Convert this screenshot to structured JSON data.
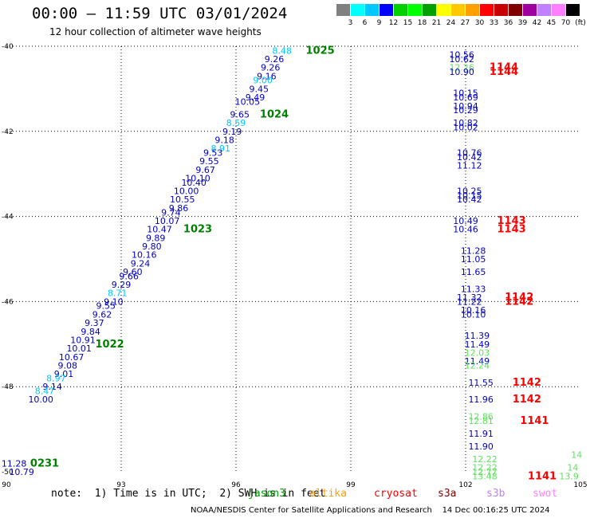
{
  "title": "00:00 — 11:59 UTC 03/01/2024",
  "subtitle": "12 hour collection of altimeter wave heights",
  "colorbar": {
    "colors": [
      "#808080",
      "#00ffff",
      "#00c8ff",
      "#0000ff",
      "#00d000",
      "#00ff00",
      "#00a000",
      "#ffff00",
      "#ffc800",
      "#ffa000",
      "#ff0000",
      "#c80000",
      "#800000",
      "#a000a0",
      "#c080ff",
      "#ff80ff",
      "#000000"
    ],
    "labels": [
      "3",
      "6",
      "9",
      "12",
      "15",
      "18",
      "21",
      "24",
      "27",
      "30",
      "33",
      "36",
      "39",
      "42",
      "45",
      "70"
    ],
    "unit": "(ft)"
  },
  "axes": {
    "y_labels": [
      "-40",
      "-42",
      "-44",
      "-46",
      "-48",
      "-50"
    ],
    "x_labels": [
      "90",
      "93",
      "96",
      "99",
      "102",
      "105"
    ]
  },
  "note": "note:  1) Time is in UTC;  2) SWH is in feet",
  "legend": [
    {
      "label": "jason3",
      "color": "#00a000"
    },
    {
      "label": "altika",
      "color": "#ffa000"
    },
    {
      "label": "cryosat",
      "color": "#ff0000"
    },
    {
      "label": "s3a",
      "color": "#800000"
    },
    {
      "label": "s3b",
      "color": "#c080ff"
    },
    {
      "label": "swot",
      "color": "#ff80ff"
    }
  ],
  "footer": "NOAA/NESDIS Center for Satellite Applications and Research    14 Dec 00:16:25 UTC 2024",
  "chart_data": {
    "type": "scatter",
    "x_range": [
      90,
      105
    ],
    "y_range": [
      -50,
      -40
    ],
    "track1_values": [
      {
        "lat": -40.1,
        "lon": 97.2,
        "v": "8.48",
        "c": "#00c8ff"
      },
      {
        "lat": -40.3,
        "lon": 97.0,
        "v": "9.26",
        "c": "#0000c8"
      },
      {
        "lat": -40.5,
        "lon": 96.9,
        "v": "9.26",
        "c": "#0000c8"
      },
      {
        "lat": -40.7,
        "lon": 96.8,
        "v": "9.16",
        "c": "#0000c8"
      },
      {
        "lat": -40.8,
        "lon": 96.7,
        "v": "9.00",
        "c": "#00c8ff"
      },
      {
        "lat": -41.0,
        "lon": 96.6,
        "v": "9.45",
        "c": "#0000c8"
      },
      {
        "lat": -41.2,
        "lon": 96.5,
        "v": "9.49",
        "c": "#0000c8"
      },
      {
        "lat": -41.3,
        "lon": 96.3,
        "v": "10.05",
        "c": "#0000c8"
      },
      {
        "lat": -41.6,
        "lon": 96.1,
        "v": "9.65",
        "c": "#0000c8"
      },
      {
        "lat": -41.8,
        "lon": 96.0,
        "v": "8.59",
        "c": "#00c8ff"
      },
      {
        "lat": -42.0,
        "lon": 95.9,
        "v": "9.19",
        "c": "#0000c8"
      },
      {
        "lat": -42.2,
        "lon": 95.7,
        "v": "9.18",
        "c": "#0000c8"
      },
      {
        "lat": -42.4,
        "lon": 95.6,
        "v": "8.91",
        "c": "#00c8ff"
      },
      {
        "lat": -42.5,
        "lon": 95.4,
        "v": "9.53",
        "c": "#0000c8"
      },
      {
        "lat": -42.7,
        "lon": 95.3,
        "v": "9.55",
        "c": "#0000c8"
      },
      {
        "lat": -42.9,
        "lon": 95.2,
        "v": "9.67",
        "c": "#0000c8"
      },
      {
        "lat": -43.1,
        "lon": 95.0,
        "v": "10.10",
        "c": "#0000c8"
      },
      {
        "lat": -43.2,
        "lon": 94.9,
        "v": "10.40",
        "c": "#0000c8"
      },
      {
        "lat": -43.4,
        "lon": 94.7,
        "v": "10.00",
        "c": "#0000c8"
      },
      {
        "lat": -43.6,
        "lon": 94.6,
        "v": "10.55",
        "c": "#0000c8"
      },
      {
        "lat": -43.8,
        "lon": 94.5,
        "v": "9.86",
        "c": "#0000c8"
      },
      {
        "lat": -43.9,
        "lon": 94.3,
        "v": "9.74",
        "c": "#0000c8"
      },
      {
        "lat": -44.1,
        "lon": 94.2,
        "v": "10.07",
        "c": "#0000c8"
      },
      {
        "lat": -44.3,
        "lon": 94.0,
        "v": "10.47",
        "c": "#0000c8"
      },
      {
        "lat": -44.5,
        "lon": 93.9,
        "v": "9.89",
        "c": "#0000c8"
      },
      {
        "lat": -44.7,
        "lon": 93.8,
        "v": "9.80",
        "c": "#0000c8"
      },
      {
        "lat": -44.9,
        "lon": 93.6,
        "v": "10.16",
        "c": "#0000c8"
      },
      {
        "lat": -45.1,
        "lon": 93.5,
        "v": "9.24",
        "c": "#0000c8"
      },
      {
        "lat": -45.3,
        "lon": 93.3,
        "v": "9.60",
        "c": "#0000c8"
      },
      {
        "lat": -45.4,
        "lon": 93.2,
        "v": "9.66",
        "c": "#0000c8"
      },
      {
        "lat": -45.6,
        "lon": 93.0,
        "v": "9.29",
        "c": "#0000c8"
      },
      {
        "lat": -45.8,
        "lon": 92.9,
        "v": "8.71",
        "c": "#00c8ff"
      },
      {
        "lat": -46.0,
        "lon": 92.8,
        "v": "9.10",
        "c": "#0000c8"
      },
      {
        "lat": -46.1,
        "lon": 92.6,
        "v": "9.55",
        "c": "#0000c8"
      },
      {
        "lat": -46.3,
        "lon": 92.5,
        "v": "9.62",
        "c": "#0000c8"
      },
      {
        "lat": -46.5,
        "lon": 92.3,
        "v": "9.37",
        "c": "#0000c8"
      },
      {
        "lat": -46.7,
        "lon": 92.2,
        "v": "9.84",
        "c": "#0000c8"
      },
      {
        "lat": -46.9,
        "lon": 92.0,
        "v": "10.91",
        "c": "#0000c8"
      },
      {
        "lat": -47.1,
        "lon": 91.9,
        "v": "10.01",
        "c": "#0000c8"
      },
      {
        "lat": -47.3,
        "lon": 91.7,
        "v": "10.67",
        "c": "#0000c8"
      },
      {
        "lat": -47.5,
        "lon": 91.6,
        "v": "9.08",
        "c": "#0000c8"
      },
      {
        "lat": -47.7,
        "lon": 91.5,
        "v": "9.01",
        "c": "#0000c8"
      },
      {
        "lat": -47.8,
        "lon": 91.3,
        "v": "8.97",
        "c": "#00c8ff"
      },
      {
        "lat": -48.0,
        "lon": 91.2,
        "v": "9.14",
        "c": "#0000c8"
      },
      {
        "lat": -48.1,
        "lon": 91.0,
        "v": "8.47",
        "c": "#00c8ff"
      },
      {
        "lat": -48.3,
        "lon": 90.9,
        "v": "10.00",
        "c": "#0000c8"
      },
      {
        "lat": -49.8,
        "lon": 90.2,
        "v": "11.28",
        "c": "#0000c8"
      },
      {
        "lat": -50.0,
        "lon": 90.4,
        "v": "10.79",
        "c": "#0000c8"
      }
    ],
    "track2_values": [
      {
        "lat": -40.2,
        "lon": 101.9,
        "v": "10.56",
        "c": "#0000c8"
      },
      {
        "lat": -40.3,
        "lon": 101.9,
        "v": "10.62",
        "c": "#0000c8"
      },
      {
        "lat": -40.5,
        "lon": 101.9,
        "v": "12.26",
        "c": "#60e060"
      },
      {
        "lat": -40.6,
        "lon": 101.9,
        "v": "10.90",
        "c": "#0000c8"
      },
      {
        "lat": -41.1,
        "lon": 102.0,
        "v": "10.15",
        "c": "#0000c8"
      },
      {
        "lat": -41.2,
        "lon": 102.0,
        "v": "10.69",
        "c": "#0000c8"
      },
      {
        "lat": -41.4,
        "lon": 102.0,
        "v": "10.94",
        "c": "#0000c8"
      },
      {
        "lat": -41.5,
        "lon": 102.0,
        "v": "10.29",
        "c": "#0000c8"
      },
      {
        "lat": -41.8,
        "lon": 102.0,
        "v": "10.82",
        "c": "#0000c8"
      },
      {
        "lat": -41.9,
        "lon": 102.0,
        "v": "10.02",
        "c": "#0000c8"
      },
      {
        "lat": -42.5,
        "lon": 102.1,
        "v": "10.76",
        "c": "#0000c8"
      },
      {
        "lat": -42.6,
        "lon": 102.1,
        "v": "10.42",
        "c": "#0000c8"
      },
      {
        "lat": -42.8,
        "lon": 102.1,
        "v": "11.12",
        "c": "#0000c8"
      },
      {
        "lat": -43.4,
        "lon": 102.1,
        "v": "10.25",
        "c": "#0000c8"
      },
      {
        "lat": -43.5,
        "lon": 102.1,
        "v": "10.15",
        "c": "#0000c8"
      },
      {
        "lat": -43.6,
        "lon": 102.1,
        "v": "10.42",
        "c": "#0000c8"
      },
      {
        "lat": -44.1,
        "lon": 102.0,
        "v": "10.49",
        "c": "#0000c8"
      },
      {
        "lat": -44.3,
        "lon": 102.0,
        "v": "10.46",
        "c": "#0000c8"
      },
      {
        "lat": -44.8,
        "lon": 102.2,
        "v": "11.28",
        "c": "#0000c8"
      },
      {
        "lat": -45.0,
        "lon": 102.2,
        "v": "11.05",
        "c": "#0000c8"
      },
      {
        "lat": -45.3,
        "lon": 102.2,
        "v": "11.65",
        "c": "#0000c8"
      },
      {
        "lat": -45.7,
        "lon": 102.2,
        "v": "11.33",
        "c": "#0000c8"
      },
      {
        "lat": -45.9,
        "lon": 102.1,
        "v": "11.32",
        "c": "#0000c8"
      },
      {
        "lat": -46.0,
        "lon": 102.1,
        "v": "11.22",
        "c": "#0000c8"
      },
      {
        "lat": -46.2,
        "lon": 102.2,
        "v": "10.16",
        "c": "#0000c8"
      },
      {
        "lat": -46.3,
        "lon": 102.2,
        "v": "10.10",
        "c": "#0000c8"
      },
      {
        "lat": -46.8,
        "lon": 102.3,
        "v": "11.39",
        "c": "#0000c8"
      },
      {
        "lat": -47.0,
        "lon": 102.3,
        "v": "11.49",
        "c": "#0000c8"
      },
      {
        "lat": -47.2,
        "lon": 102.3,
        "v": "12.03",
        "c": "#60e060"
      },
      {
        "lat": -47.4,
        "lon": 102.3,
        "v": "11.49",
        "c": "#0000c8"
      },
      {
        "lat": -47.5,
        "lon": 102.3,
        "v": "12.24",
        "c": "#60e060"
      },
      {
        "lat": -47.9,
        "lon": 102.4,
        "v": "11.55",
        "c": "#0000c8"
      },
      {
        "lat": -48.3,
        "lon": 102.4,
        "v": "11.96",
        "c": "#0000c8"
      },
      {
        "lat": -48.7,
        "lon": 102.4,
        "v": "12.86",
        "c": "#60e060"
      },
      {
        "lat": -48.8,
        "lon": 102.4,
        "v": "12.81",
        "c": "#60e060"
      },
      {
        "lat": -49.1,
        "lon": 102.4,
        "v": "11.91",
        "c": "#0000c8"
      },
      {
        "lat": -49.4,
        "lon": 102.4,
        "v": "11.90",
        "c": "#0000c8"
      },
      {
        "lat": -49.7,
        "lon": 102.5,
        "v": "12.22",
        "c": "#60e060"
      },
      {
        "lat": -49.9,
        "lon": 102.5,
        "v": "12.22",
        "c": "#60e060"
      },
      {
        "lat": -50.0,
        "lon": 102.5,
        "v": "12.77",
        "c": "#60e060"
      },
      {
        "lat": -50.1,
        "lon": 102.5,
        "v": "13.48",
        "c": "#60e060"
      }
    ],
    "edge_values": [
      {
        "lat": -49.6,
        "lon": 104.9,
        "v": "14",
        "c": "#60e060"
      },
      {
        "lat": -49.9,
        "lon": 104.8,
        "v": "14",
        "c": "#60e060"
      },
      {
        "lat": -50.1,
        "lon": 104.7,
        "v": "13.9",
        "c": "#60e060"
      }
    ],
    "time_labels": [
      {
        "lat": -40.1,
        "lon": 98.2,
        "v": "1025",
        "c": "#008000"
      },
      {
        "lat": -41.6,
        "lon": 97.0,
        "v": "1024",
        "c": "#008000"
      },
      {
        "lat": -44.3,
        "lon": 95.0,
        "v": "1023",
        "c": "#008000"
      },
      {
        "lat": -47.0,
        "lon": 92.7,
        "v": "1022",
        "c": "#008000"
      },
      {
        "lat": -49.8,
        "lon": 91.0,
        "v": "0231",
        "c": "#008000"
      },
      {
        "lat": -40.5,
        "lon": 103.0,
        "v": "1144",
        "c": "#ff0000"
      },
      {
        "lat": -40.6,
        "lon": 103.0,
        "v": "1144",
        "c": "#ff0000"
      },
      {
        "lat": -44.1,
        "lon": 103.2,
        "v": "1143",
        "c": "#ff0000"
      },
      {
        "lat": -44.3,
        "lon": 103.2,
        "v": "1143",
        "c": "#ff0000"
      },
      {
        "lat": -45.9,
        "lon": 103.4,
        "v": "1142",
        "c": "#ff0000"
      },
      {
        "lat": -46.0,
        "lon": 103.4,
        "v": "1142",
        "c": "#ff0000"
      },
      {
        "lat": -47.9,
        "lon": 103.6,
        "v": "1142",
        "c": "#ff0000"
      },
      {
        "lat": -48.3,
        "lon": 103.6,
        "v": "1142",
        "c": "#ff0000"
      },
      {
        "lat": -48.8,
        "lon": 103.8,
        "v": "1141",
        "c": "#ff0000"
      },
      {
        "lat": -50.1,
        "lon": 104.0,
        "v": "1141",
        "c": "#ff0000"
      }
    ]
  }
}
